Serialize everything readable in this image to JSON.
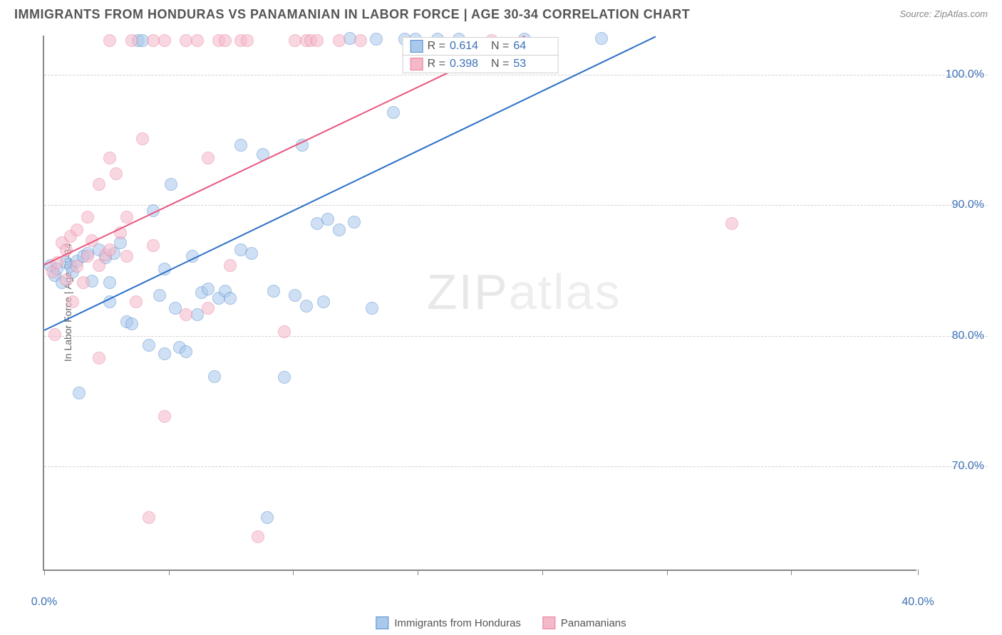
{
  "title": "IMMIGRANTS FROM HONDURAS VS PANAMANIAN IN LABOR FORCE | AGE 30-34 CORRELATION CHART",
  "source": "Source: ZipAtlas.com",
  "ylabel": "In Labor Force | Age 30-34",
  "watermark_a": "ZIP",
  "watermark_b": "atlas",
  "chart": {
    "type": "scatter",
    "xlim": [
      0,
      40
    ],
    "ylim": [
      62,
      103
    ],
    "xticks": [
      0,
      5.7,
      11.4,
      17.1,
      22.8,
      28.5,
      34.2,
      40
    ],
    "xtick_labels": {
      "0": "0.0%",
      "40": "40.0%"
    },
    "yticks": [
      70,
      80,
      90,
      100
    ],
    "ytick_labels": [
      "70.0%",
      "80.0%",
      "90.0%",
      "100.0%"
    ],
    "background_color": "#ffffff",
    "grid_color": "#d0d0d0",
    "axis_color": "#888888",
    "marker_size": 18,
    "marker_opacity": 0.55,
    "series": [
      {
        "name": "Immigrants from Honduras",
        "color_fill": "#a8c8ec",
        "color_stroke": "#5b8fd0",
        "R": "0.614",
        "N": "64",
        "trend": {
          "x1": 0,
          "y1": 80.5,
          "x2": 28,
          "y2": 103,
          "color": "#2b6fc8",
          "width": 2
        },
        "points": [
          [
            0.3,
            85.3
          ],
          [
            0.5,
            84.5
          ],
          [
            0.6,
            85.0
          ],
          [
            0.8,
            84.0
          ],
          [
            1.0,
            85.5
          ],
          [
            1.2,
            85.2
          ],
          [
            1.3,
            84.8
          ],
          [
            1.5,
            85.6
          ],
          [
            1.6,
            75.5
          ],
          [
            1.8,
            86.0
          ],
          [
            2.0,
            86.2
          ],
          [
            2.2,
            84.1
          ],
          [
            2.5,
            86.5
          ],
          [
            2.8,
            85.9
          ],
          [
            3.0,
            84.0
          ],
          [
            3.0,
            82.5
          ],
          [
            3.2,
            86.2
          ],
          [
            3.5,
            87.0
          ],
          [
            3.8,
            81.0
          ],
          [
            4.0,
            80.8
          ],
          [
            4.3,
            102.5
          ],
          [
            4.5,
            102.5
          ],
          [
            4.8,
            79.2
          ],
          [
            5.0,
            89.5
          ],
          [
            5.3,
            83.0
          ],
          [
            5.5,
            78.5
          ],
          [
            5.5,
            85.0
          ],
          [
            5.8,
            91.5
          ],
          [
            6.0,
            82.0
          ],
          [
            6.2,
            79.0
          ],
          [
            6.5,
            78.7
          ],
          [
            6.8,
            86.0
          ],
          [
            7.0,
            81.5
          ],
          [
            7.2,
            83.2
          ],
          [
            7.5,
            83.5
          ],
          [
            7.8,
            76.8
          ],
          [
            8.0,
            82.8
          ],
          [
            8.3,
            83.3
          ],
          [
            8.5,
            82.8
          ],
          [
            9.0,
            94.5
          ],
          [
            9.0,
            86.5
          ],
          [
            9.5,
            86.2
          ],
          [
            10.0,
            93.8
          ],
          [
            10.2,
            66.0
          ],
          [
            10.5,
            83.3
          ],
          [
            11.0,
            76.7
          ],
          [
            11.5,
            83.0
          ],
          [
            11.8,
            94.5
          ],
          [
            12.0,
            82.2
          ],
          [
            12.5,
            88.5
          ],
          [
            12.8,
            82.5
          ],
          [
            13.0,
            88.8
          ],
          [
            13.5,
            88.0
          ],
          [
            14.0,
            102.7
          ],
          [
            14.2,
            88.6
          ],
          [
            15.0,
            82.0
          ],
          [
            15.2,
            102.6
          ],
          [
            16.0,
            97.0
          ],
          [
            16.5,
            102.6
          ],
          [
            17.0,
            102.6
          ],
          [
            18.0,
            102.6
          ],
          [
            19.0,
            102.6
          ],
          [
            22.0,
            102.6
          ],
          [
            25.5,
            102.7
          ]
        ]
      },
      {
        "name": "Panamanians",
        "color_fill": "#f5b8c9",
        "color_stroke": "#e8829f",
        "R": "0.398",
        "N": "53",
        "trend": {
          "x1": 0,
          "y1": 85.5,
          "x2": 22,
          "y2": 103,
          "color": "#e8567d",
          "width": 2
        },
        "points": [
          [
            0.4,
            84.8
          ],
          [
            0.5,
            80.0
          ],
          [
            0.6,
            85.5
          ],
          [
            0.8,
            87.0
          ],
          [
            1.0,
            86.5
          ],
          [
            1.0,
            84.2
          ],
          [
            1.2,
            87.5
          ],
          [
            1.3,
            82.5
          ],
          [
            1.5,
            88.0
          ],
          [
            1.5,
            85.2
          ],
          [
            1.8,
            84.0
          ],
          [
            2.0,
            89.0
          ],
          [
            2.0,
            86.0
          ],
          [
            2.2,
            87.2
          ],
          [
            2.5,
            91.5
          ],
          [
            2.5,
            78.2
          ],
          [
            2.5,
            85.3
          ],
          [
            2.8,
            86.1
          ],
          [
            3.0,
            93.5
          ],
          [
            3.0,
            86.5
          ],
          [
            3.0,
            102.5
          ],
          [
            3.3,
            92.3
          ],
          [
            3.5,
            87.8
          ],
          [
            3.8,
            89.0
          ],
          [
            3.8,
            86.0
          ],
          [
            4.0,
            102.5
          ],
          [
            4.2,
            82.5
          ],
          [
            4.5,
            95.0
          ],
          [
            4.8,
            66.0
          ],
          [
            5.0,
            86.8
          ],
          [
            5.0,
            102.5
          ],
          [
            5.5,
            73.7
          ],
          [
            5.5,
            102.5
          ],
          [
            6.5,
            81.5
          ],
          [
            6.5,
            102.5
          ],
          [
            7.0,
            102.5
          ],
          [
            7.5,
            82.0
          ],
          [
            7.5,
            93.5
          ],
          [
            8.0,
            102.5
          ],
          [
            8.3,
            102.5
          ],
          [
            8.5,
            85.3
          ],
          [
            9.0,
            102.5
          ],
          [
            9.3,
            102.5
          ],
          [
            9.8,
            64.5
          ],
          [
            11.0,
            80.2
          ],
          [
            11.5,
            102.5
          ],
          [
            12.0,
            102.5
          ],
          [
            12.2,
            102.5
          ],
          [
            12.5,
            102.5
          ],
          [
            13.5,
            102.5
          ],
          [
            14.5,
            102.5
          ],
          [
            20.5,
            102.5
          ],
          [
            31.5,
            88.5
          ]
        ]
      }
    ]
  },
  "legend_top": {
    "R_label": "R =",
    "N_label": "N ="
  },
  "legend_bottom": [
    {
      "label": "Immigrants from Honduras",
      "fill": "#a8c8ec",
      "stroke": "#5b8fd0"
    },
    {
      "label": "Panamanians",
      "fill": "#f5b8c9",
      "stroke": "#e8829f"
    }
  ]
}
